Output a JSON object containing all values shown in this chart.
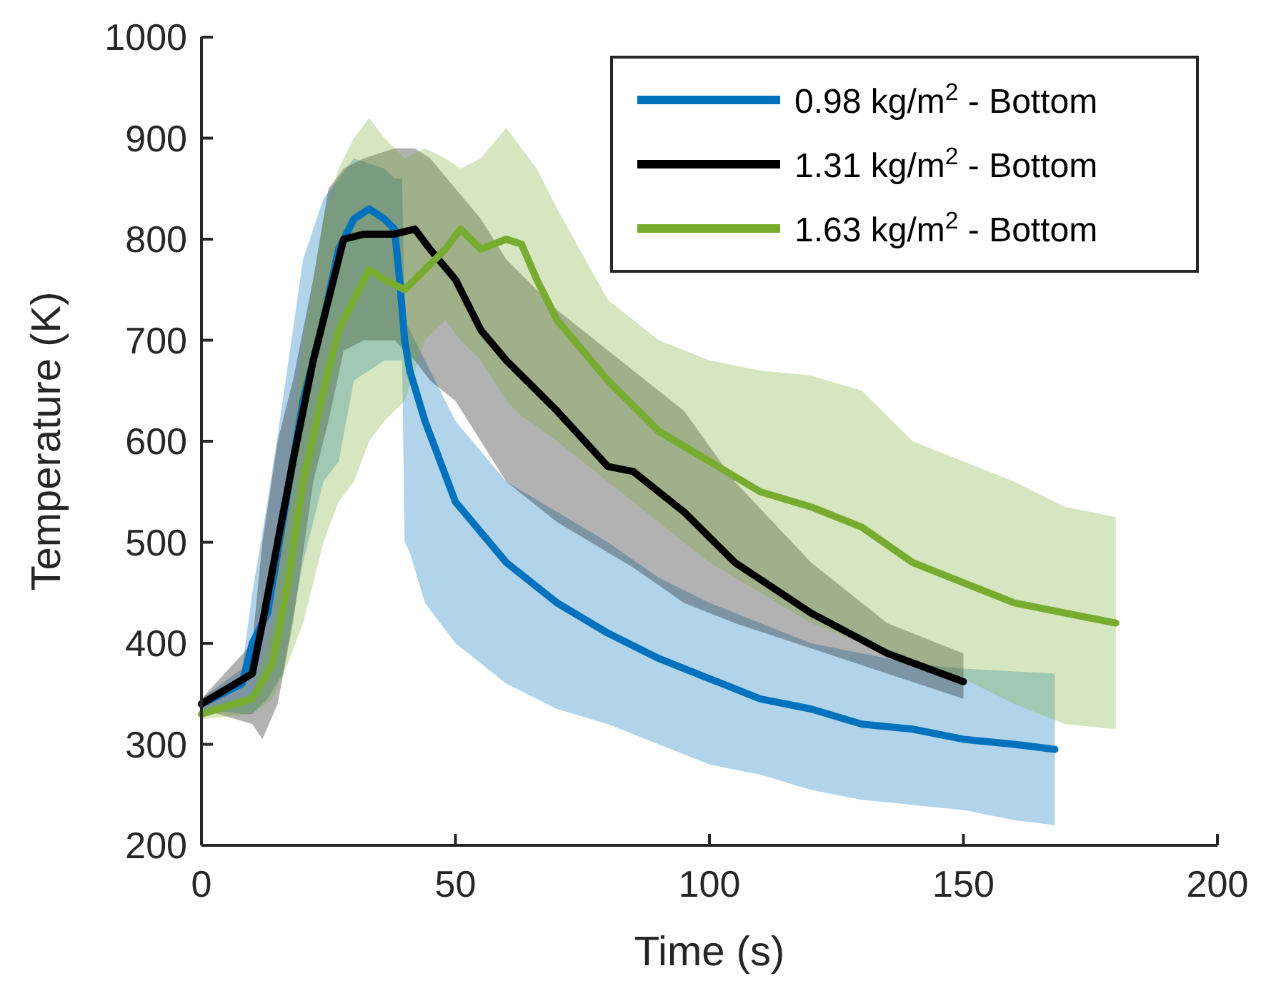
{
  "chart_data": {
    "type": "line",
    "xlabel": "Time (s)",
    "ylabel": "Temperature (K)",
    "xlim": [
      0,
      200
    ],
    "ylim": [
      200,
      1000
    ],
    "xticks": [
      0,
      50,
      100,
      150,
      200
    ],
    "yticks": [
      200,
      300,
      400,
      500,
      600,
      700,
      800,
      900,
      1000
    ],
    "grid": false,
    "legend": "top right",
    "line_style": "solid",
    "marker": "none",
    "series": [
      {
        "name": "0.98 kg/m$^{2}$ - Bottom",
        "color": "#0072bd",
        "x": [
          0,
          8,
          10,
          13,
          16,
          20,
          24,
          27,
          30,
          33,
          36,
          38,
          39,
          39.5,
          40,
          41,
          44,
          50,
          60,
          70,
          80,
          90,
          100,
          110,
          120,
          130,
          140,
          150,
          160,
          168
        ],
        "values": [
          340,
          360,
          400,
          430,
          520,
          640,
          720,
          790,
          820,
          830,
          820,
          810,
          760,
          730,
          700,
          670,
          620,
          540,
          480,
          440,
          410,
          385,
          365,
          345,
          335,
          320,
          315,
          305,
          300,
          295
        ],
        "lower": [
          335,
          330,
          330,
          345,
          370,
          480,
          560,
          580,
          660,
          670,
          680,
          680,
          680,
          680,
          500,
          490,
          440,
          400,
          360,
          335,
          320,
          300,
          280,
          270,
          255,
          245,
          240,
          235,
          225,
          220
        ],
        "upper": [
          345,
          375,
          450,
          540,
          640,
          780,
          840,
          860,
          880,
          875,
          870,
          860,
          860,
          860,
          720,
          710,
          680,
          620,
          560,
          530,
          500,
          465,
          440,
          420,
          400,
          390,
          380,
          375,
          372,
          370
        ]
      },
      {
        "name": "1.31 kg/m$^{2}$ - Bottom",
        "color": "#000000",
        "x": [
          0,
          10,
          12,
          15,
          18,
          22,
          25,
          28,
          32,
          38,
          42,
          45,
          50,
          55,
          60,
          70,
          80,
          85,
          95,
          105,
          120,
          135,
          150
        ],
        "values": [
          340,
          370,
          420,
          500,
          580,
          680,
          740,
          800,
          805,
          805,
          810,
          790,
          760,
          710,
          680,
          630,
          575,
          570,
          530,
          480,
          430,
          390,
          362
        ],
        "lower": [
          335,
          320,
          305,
          340,
          420,
          560,
          620,
          690,
          700,
          700,
          680,
          660,
          640,
          600,
          560,
          520,
          490,
          475,
          440,
          420,
          395,
          370,
          345
        ],
        "upper": [
          345,
          400,
          500,
          600,
          660,
          760,
          850,
          870,
          880,
          890,
          890,
          880,
          850,
          820,
          780,
          730,
          690,
          670,
          630,
          560,
          480,
          420,
          390
        ]
      },
      {
        "name": "1.63 kg/m$^{2}$ - Bottom",
        "color": "#77ac30",
        "x": [
          0,
          10,
          14,
          17,
          20,
          24,
          27,
          30,
          33,
          36,
          40,
          44,
          48,
          51,
          55,
          60,
          63,
          66,
          70,
          80,
          90,
          100,
          110,
          120,
          130,
          140,
          150,
          160,
          170,
          180
        ],
        "values": [
          330,
          345,
          380,
          460,
          560,
          650,
          710,
          740,
          770,
          760,
          750,
          770,
          790,
          810,
          790,
          800,
          795,
          760,
          720,
          660,
          610,
          580,
          550,
          535,
          515,
          480,
          460,
          440,
          430,
          420
        ],
        "lower": [
          325,
          330,
          345,
          380,
          420,
          500,
          540,
          560,
          600,
          620,
          640,
          700,
          720,
          700,
          680,
          640,
          625,
          615,
          600,
          560,
          520,
          480,
          450,
          420,
          400,
          380,
          365,
          340,
          320,
          315
        ],
        "upper": [
          335,
          350,
          420,
          560,
          700,
          820,
          870,
          900,
          920,
          900,
          880,
          890,
          880,
          870,
          880,
          910,
          890,
          870,
          830,
          740,
          700,
          680,
          670,
          665,
          650,
          600,
          580,
          560,
          535,
          525
        ]
      }
    ]
  }
}
